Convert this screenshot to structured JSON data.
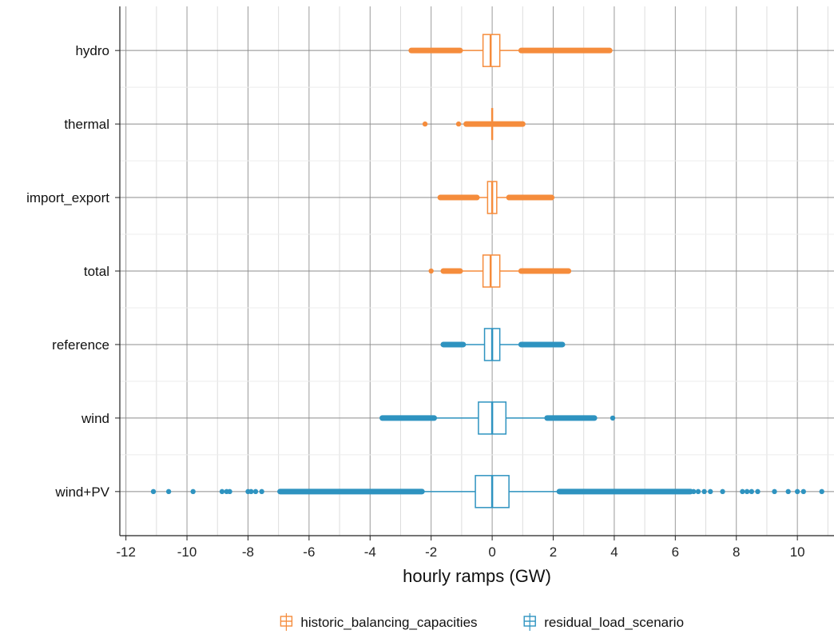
{
  "chart_data": {
    "type": "boxplot",
    "orientation": "horizontal",
    "xlabel": "hourly ramps (GW)",
    "xlim": [
      -12.2,
      11.2
    ],
    "x_ticks": [
      -12,
      -10,
      -8,
      -6,
      -4,
      -2,
      0,
      2,
      4,
      6,
      8,
      10
    ],
    "grid": true,
    "legend_position": "bottom",
    "categories": [
      "hydro",
      "thermal",
      "import_export",
      "total",
      "reference",
      "wind",
      "wind+PV"
    ],
    "series": [
      {
        "name": "historic_balancing_capacities",
        "color": "#f58c3c",
        "boxes": [
          {
            "category": "hydro",
            "q1": -0.3,
            "median": -0.05,
            "q3": 0.25,
            "whisker_low": -1.0,
            "whisker_high": 0.95,
            "outliers_low": [
              -2.65,
              -1.05
            ],
            "outliers_high": [
              0.95,
              3.85
            ]
          },
          {
            "category": "thermal",
            "q1": 0.0,
            "median": 0.0,
            "q3": 0.0,
            "whisker_low": 0.0,
            "whisker_high": 0.0,
            "outliers_low": [
              -2.2,
              -1.1,
              -0.85,
              -0.05
            ],
            "outliers_high": [
              0.05,
              1.0
            ]
          },
          {
            "category": "import_export",
            "q1": -0.15,
            "median": 0.0,
            "q3": 0.15,
            "whisker_low": -0.5,
            "whisker_high": 0.55,
            "outliers_low": [
              -1.7,
              -0.5
            ],
            "outliers_high": [
              0.55,
              1.95
            ]
          },
          {
            "category": "total",
            "q1": -0.3,
            "median": -0.05,
            "q3": 0.25,
            "whisker_low": -1.05,
            "whisker_high": 0.95,
            "outliers_low": [
              -2.0,
              -1.6,
              -1.05
            ],
            "outliers_high": [
              0.95,
              2.5
            ]
          }
        ]
      },
      {
        "name": "residual_load_scenario",
        "color": "#2e93c0",
        "boxes": [
          {
            "category": "reference",
            "q1": -0.25,
            "median": 0.0,
            "q3": 0.25,
            "whisker_low": -0.95,
            "whisker_high": 0.95,
            "outliers_low": [
              -1.6,
              -0.95
            ],
            "outliers_high": [
              0.95,
              2.3
            ]
          },
          {
            "category": "wind",
            "q1": -0.45,
            "median": 0.0,
            "q3": 0.45,
            "whisker_low": -1.9,
            "whisker_high": 1.8,
            "outliers_low": [
              -3.6,
              -1.9
            ],
            "outliers_high": [
              1.8,
              3.35,
              3.95
            ]
          },
          {
            "category": "wind+PV",
            "q1": -0.55,
            "median": 0.0,
            "q3": 0.55,
            "whisker_low": -2.3,
            "whisker_high": 2.2,
            "outliers_low": [
              -11.1,
              -10.6,
              -9.8,
              -8.85,
              -8.7,
              -8.6,
              -8.0,
              -7.9,
              -7.75,
              -7.55,
              -6.95,
              -2.3
            ],
            "outliers_high": [
              2.2,
              6.5,
              6.6,
              6.75,
              6.95,
              7.15,
              7.55,
              8.2,
              8.35,
              8.5,
              8.7,
              9.25,
              9.7,
              10.0,
              10.2,
              10.8
            ]
          }
        ]
      }
    ]
  }
}
